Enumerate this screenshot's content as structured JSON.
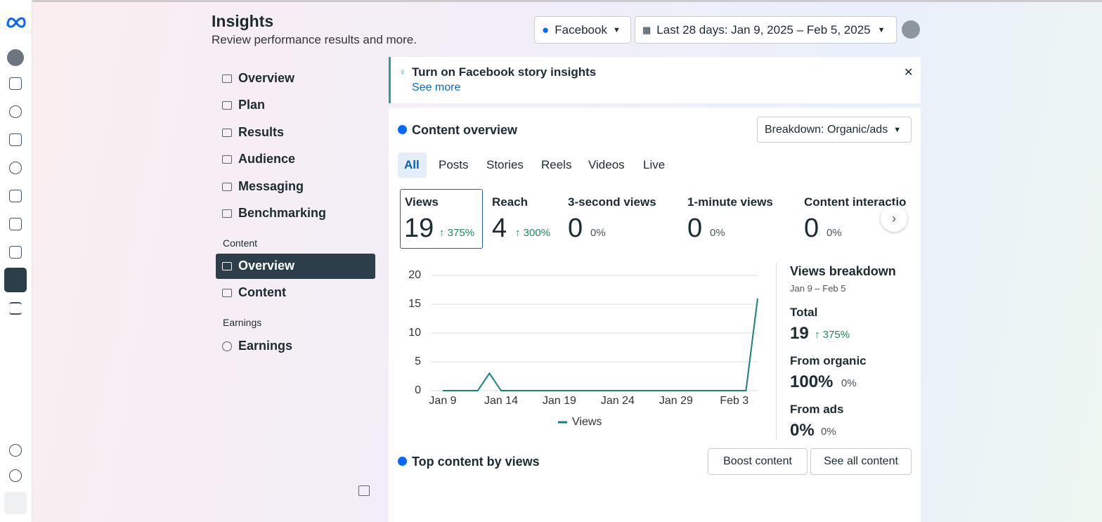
{
  "header": {
    "title": "Insights",
    "subtitle": "Review performance results and more."
  },
  "controls": {
    "platform": "Facebook",
    "date_range": "Last 28 days: Jan 9, 2025 – Feb 5, 2025"
  },
  "nav": {
    "items": [
      "Overview",
      "Plan",
      "Results",
      "Audience",
      "Messaging",
      "Benchmarking"
    ],
    "content_section": "Content",
    "content_items": [
      "Overview",
      "Content"
    ],
    "earnings_section": "Earnings",
    "earnings_items": [
      "Earnings"
    ]
  },
  "banner": {
    "title": "Turn on Facebook story insights",
    "link": "See more"
  },
  "content_overview": {
    "title": "Content overview",
    "breakdown": "Breakdown: Organic/ads",
    "tabs": [
      "All",
      "Posts",
      "Stories",
      "Reels",
      "Videos",
      "Live"
    ],
    "metrics": [
      {
        "label": "Views",
        "value": "19",
        "change": "↑ 375%"
      },
      {
        "label": "Reach",
        "value": "4",
        "change": "↑ 300%"
      },
      {
        "label": "3-second views",
        "value": "0",
        "change": "0%"
      },
      {
        "label": "1-minute views",
        "value": "0",
        "change": "0%"
      },
      {
        "label": "Content interactio",
        "value": "0",
        "change": "0%"
      }
    ]
  },
  "chart": {
    "type": "line",
    "categories": [
      "Jan 9",
      null,
      null,
      null,
      null,
      "Jan 14",
      null,
      null,
      null,
      null,
      "Jan 19",
      null,
      null,
      null,
      null,
      "Jan 24",
      null,
      null,
      null,
      null,
      "Jan 29",
      null,
      null,
      null,
      null,
      "Feb 3",
      null,
      null
    ],
    "series": [
      {
        "name": "Views",
        "color": "#1b7f7a",
        "values": [
          0,
          0,
          0,
          0,
          3,
          0,
          0,
          0,
          0,
          0,
          0,
          0,
          0,
          0,
          0,
          0,
          0,
          0,
          0,
          0,
          0,
          0,
          0,
          0,
          0,
          0,
          0,
          16
        ]
      }
    ],
    "ylim": [
      0,
      20
    ],
    "yticks": [
      0,
      5,
      10,
      15,
      20
    ],
    "grid": true
  },
  "breakdown": {
    "title": "Views breakdown",
    "range": "Jan 9 – Feb 5",
    "items": [
      {
        "label": "Total",
        "value": "19",
        "change": "↑ 375%"
      },
      {
        "label": "From organic",
        "value": "100%",
        "change": "0%"
      },
      {
        "label": "From ads",
        "value": "0%",
        "change": "0%"
      }
    ]
  },
  "top_content": {
    "title": "Top content by views",
    "buttons": [
      "Boost content",
      "See all content"
    ]
  }
}
